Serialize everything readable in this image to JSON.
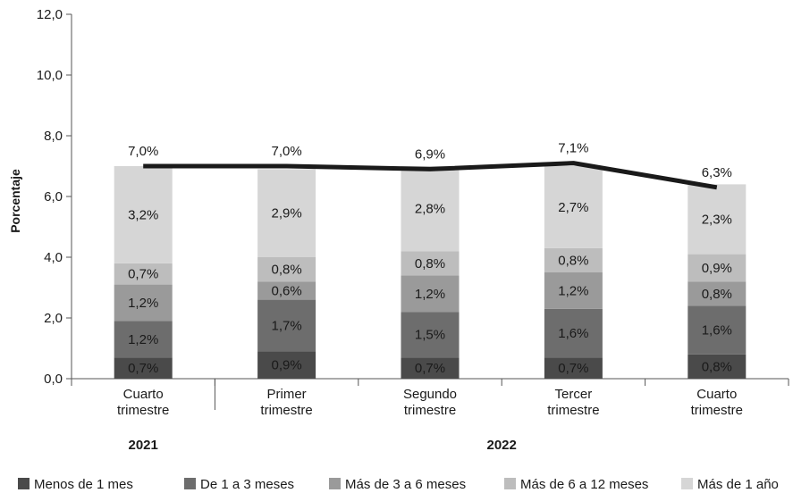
{
  "chart_data": {
    "type": "bar",
    "stacked": true,
    "ylabel": "Porcentaje",
    "ylim": [
      0,
      12
    ],
    "yticks": [
      "0,0",
      "2,0",
      "4,0",
      "6,0",
      "8,0",
      "10,0",
      "12,0"
    ],
    "categories": [
      [
        "Cuarto",
        "trimestre"
      ],
      [
        "Primer",
        "trimestre"
      ],
      [
        "Segundo",
        "trimestre"
      ],
      [
        "Tercer",
        "trimestre"
      ],
      [
        "Cuarto",
        "trimestre"
      ]
    ],
    "year_groups": [
      {
        "label": "2021",
        "categories": [
          0
        ]
      },
      {
        "label": "2022",
        "categories": [
          1,
          2,
          3,
          4
        ]
      }
    ],
    "series": [
      {
        "name": "Menos de 1 mes",
        "color": "#4a4a4a",
        "values": [
          0.7,
          0.9,
          0.7,
          0.7,
          0.8
        ],
        "labels": [
          "0,7%",
          "0,9%",
          "0,7%",
          "0,7%",
          "0,8%"
        ]
      },
      {
        "name": "De 1 a 3 meses",
        "color": "#6d6d6d",
        "values": [
          1.2,
          1.7,
          1.5,
          1.6,
          1.6
        ],
        "labels": [
          "1,2%",
          "1,7%",
          "1,5%",
          "1,6%",
          "1,6%"
        ]
      },
      {
        "name": "Más de 3 a 6 meses",
        "color": "#9a9a9a",
        "values": [
          1.2,
          0.6,
          1.2,
          1.2,
          0.8
        ],
        "labels": [
          "1,2%",
          "0,6%",
          "1,2%",
          "1,2%",
          "0,8%"
        ]
      },
      {
        "name": "Más de 6 a 12 meses",
        "color": "#bdbdbd",
        "values": [
          0.7,
          0.8,
          0.8,
          0.8,
          0.9
        ],
        "labels": [
          "0,7%",
          "0,8%",
          "0,8%",
          "0,8%",
          "0,9%"
        ]
      },
      {
        "name": "Más de 1 año",
        "color": "#d6d6d6",
        "values": [
          3.2,
          2.9,
          2.8,
          2.7,
          2.3
        ],
        "labels": [
          "3,2%",
          "2,9%",
          "2,8%",
          "2,7%",
          "2,3%"
        ]
      }
    ],
    "total_line": {
      "color": "#1a1a1a",
      "values": [
        7.0,
        7.0,
        6.9,
        7.1,
        6.3
      ],
      "labels": [
        "7,0%",
        "7,0%",
        "6,9%",
        "7,1%",
        "6,3%"
      ]
    },
    "legend_position": "bottom",
    "grid": false
  }
}
